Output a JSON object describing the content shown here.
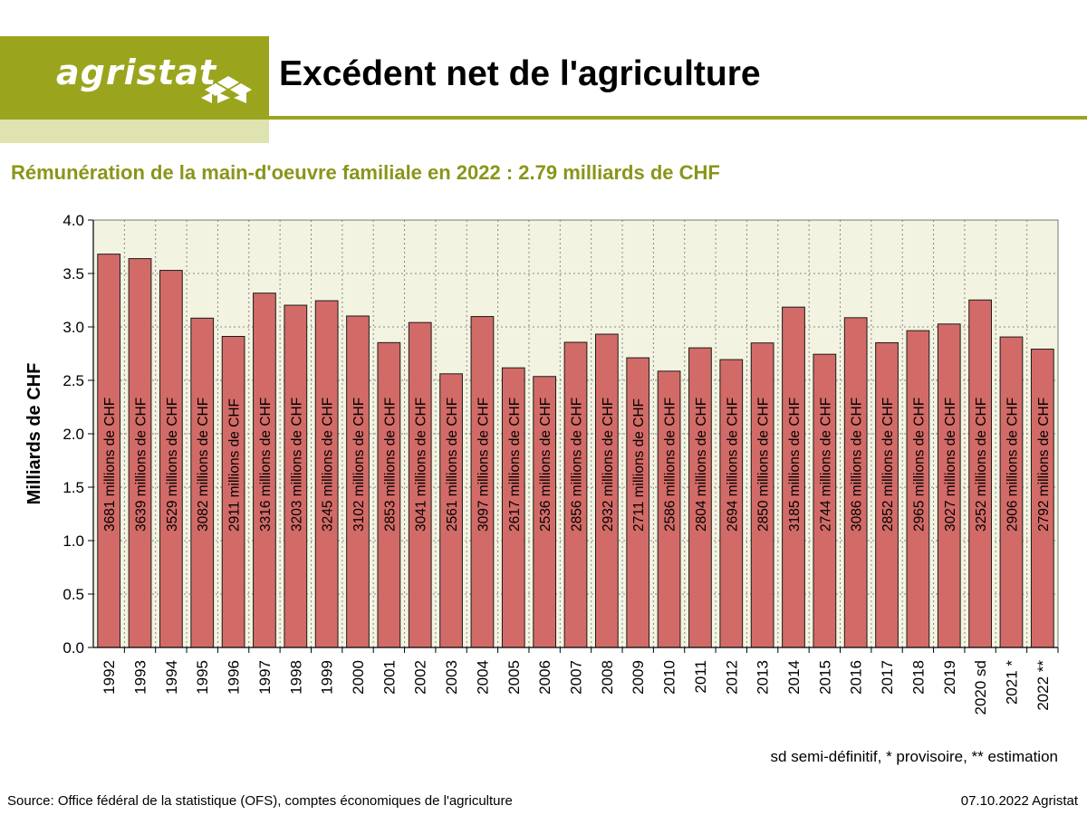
{
  "header": {
    "logo_text": "agristat",
    "title": "Excédent net de l'agriculture"
  },
  "subtitle": "Rémunération de la main-d'oeuvre familiale en 2022 : 2.79 milliards de CHF",
  "note": "sd semi-définitif, * provisoire, ** estimation",
  "footer": {
    "source": "Source: Office fédéral de la statistique (OFS), comptes économiques de l'agriculture",
    "date": "07.10.2022 Agristat"
  },
  "colors": {
    "brand": "#9aa51d",
    "brand_light": "#dfe3b0",
    "bar_fill": "#d26b67",
    "plot_bg": "#f3f3e1",
    "subtitle": "#8a951a"
  },
  "chart_data": {
    "type": "bar",
    "ylabel": "Milliards de CHF",
    "ylim": [
      0,
      4.0
    ],
    "yticks": [
      "0.0",
      "0.5",
      "1.0",
      "1.5",
      "2.0",
      "2.5",
      "3.0",
      "3.5",
      "4.0"
    ],
    "grid": true,
    "categories": [
      "1992",
      "1993",
      "1994",
      "1995",
      "1996",
      "1997",
      "1998",
      "1999",
      "2000",
      "2001",
      "2002",
      "2003",
      "2004",
      "2005",
      "2006",
      "2007",
      "2008",
      "2009",
      "2010",
      "2011",
      "2012",
      "2013",
      "2014",
      "2015",
      "2016",
      "2017",
      "2018",
      "2019",
      "2020 sd",
      "2021  *",
      "2022 **"
    ],
    "values": [
      3.681,
      3.639,
      3.529,
      3.082,
      2.911,
      3.316,
      3.203,
      3.245,
      3.102,
      2.853,
      3.041,
      2.561,
      3.097,
      2.617,
      2.536,
      2.856,
      2.932,
      2.711,
      2.586,
      2.804,
      2.694,
      2.85,
      3.185,
      2.744,
      3.086,
      2.852,
      2.965,
      3.027,
      3.252,
      2.906,
      2.792
    ],
    "data_labels": [
      "3681 millions de CHF",
      "3639 millions de CHF",
      "3529 millions de CHF",
      "3082 millions de CHF",
      "2911 millions de CHF",
      "3316 millions de CHF",
      "3203 millions de CHF",
      "3245 millions de CHF",
      "3102 millions de CHF",
      "2853 millions de CHF",
      "3041 millions de CHF",
      "2561 millions de CHF",
      "3097 millions de CHF",
      "2617 millions de CHF",
      "2536 millions de CHF",
      "2856 millions de CHF",
      "2932 millions de CHF",
      "2711 millions de CHF",
      "2586 millions de CHF",
      "2804 millions de CHF",
      "2694 millions de CHF",
      "2850 millions de CHF",
      "3185 millions de CHF",
      "2744 millions de CHF",
      "3086 millions de CHF",
      "2852 millions de CHF",
      "2965 millions de CHF",
      "3027 millions de CHF",
      "3252 millions de CHF",
      "2906 millions de CHF",
      "2792 millions de CHF"
    ]
  }
}
